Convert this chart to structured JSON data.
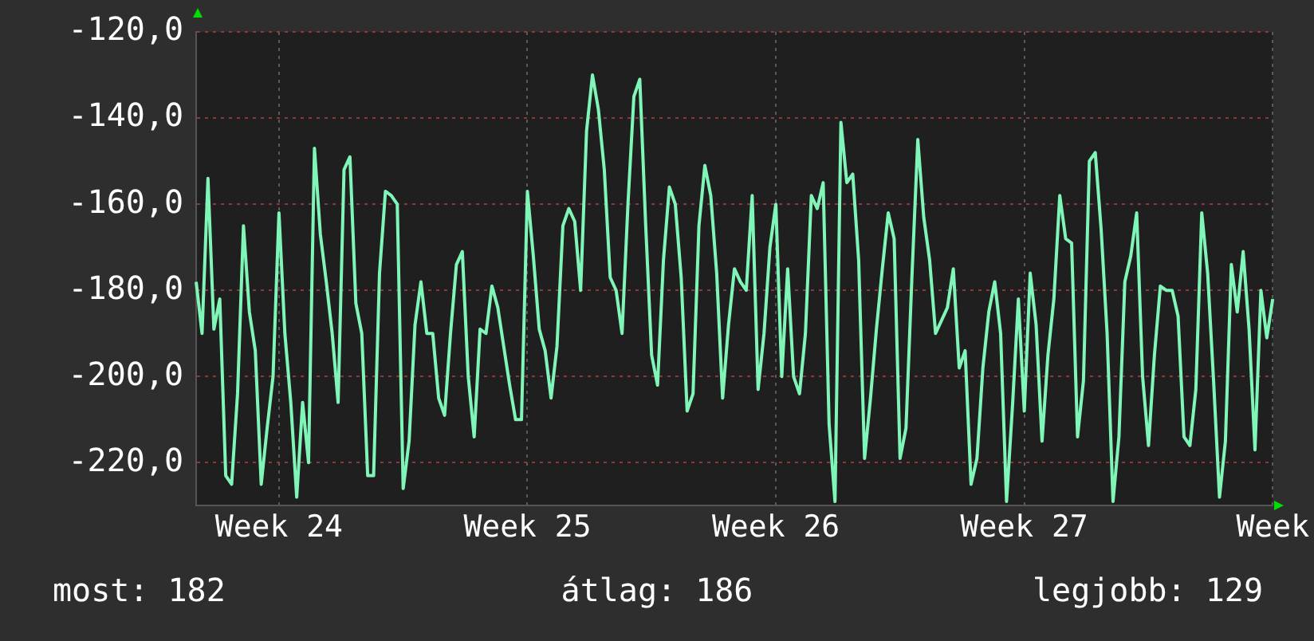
{
  "chart_data": {
    "type": "line",
    "color": "#80f5b8",
    "grid": true,
    "legend": false,
    "marker": "none",
    "categories": [
      null,
      null,
      null,
      null,
      null,
      null,
      null,
      null,
      null,
      null,
      null,
      null,
      null,
      null,
      "Week 24",
      null,
      null,
      null,
      null,
      null,
      null,
      null,
      null,
      null,
      null,
      null,
      null,
      null,
      null,
      null,
      null,
      null,
      null,
      null,
      null,
      null,
      null,
      null,
      null,
      null,
      null,
      null,
      null,
      null,
      null,
      null,
      null,
      null,
      null,
      null,
      null,
      null,
      null,
      null,
      null,
      null,
      "Week 25",
      null,
      null,
      null,
      null,
      null,
      null,
      null,
      null,
      null,
      null,
      null,
      null,
      null,
      null,
      null,
      null,
      null,
      null,
      null,
      null,
      null,
      null,
      null,
      null,
      null,
      null,
      null,
      null,
      null,
      null,
      null,
      null,
      null,
      null,
      null,
      null,
      null,
      null,
      null,
      null,
      null,
      "Week 26",
      null,
      null,
      null,
      null,
      null,
      null,
      null,
      null,
      null,
      null,
      null,
      null,
      null,
      null,
      null,
      null,
      null,
      null,
      null,
      null,
      null,
      null,
      null,
      null,
      null,
      null,
      null,
      null,
      null,
      null,
      null,
      null,
      null,
      null,
      null,
      null,
      null,
      null,
      null,
      null,
      null,
      "Week 27",
      null,
      null,
      null,
      null,
      null,
      null,
      null,
      null,
      null,
      null,
      null,
      null,
      null,
      null,
      null,
      null,
      null,
      null,
      null,
      null,
      null,
      null,
      null,
      null,
      null,
      null,
      null,
      null,
      null,
      null,
      null,
      null,
      null,
      null,
      null,
      null,
      null,
      null,
      null,
      null,
      null,
      "Week"
    ],
    "ylim": [
      -230,
      -120
    ],
    "yticks": [
      {
        "value": -120,
        "label": "-120,0"
      },
      {
        "value": -140,
        "label": "-140,0"
      },
      {
        "value": -160,
        "label": "-160,0"
      },
      {
        "value": -180,
        "label": "-180,0"
      },
      {
        "value": -200,
        "label": "-200,0"
      },
      {
        "value": -220,
        "label": "-220,0"
      }
    ],
    "annotations": [
      "most: 182",
      "átlag: 186",
      "legjobb: 129"
    ],
    "values": [
      -178,
      -190,
      -154,
      -189,
      -182,
      -223,
      -225,
      -204,
      -165,
      -185,
      -194,
      -225,
      -212,
      -200,
      -162,
      -190,
      -206,
      -228,
      -206,
      -220,
      -147,
      -167,
      -178,
      -190,
      -206,
      -152,
      -149,
      -183,
      -190,
      -223,
      -223,
      -176,
      -157,
      -158,
      -160,
      -226,
      -215,
      -188,
      -178,
      -190,
      -190,
      -205,
      -209,
      -190,
      -174,
      -171,
      -200,
      -214,
      -189,
      -190,
      -179,
      -184,
      -193,
      -202,
      -210,
      -210,
      -157,
      -172,
      -189,
      -194,
      -205,
      -193,
      -165,
      -161,
      -164,
      -180,
      -143,
      -130,
      -138,
      -152,
      -177,
      -180,
      -190,
      -160,
      -135,
      -131,
      -165,
      -195,
      -202,
      -173,
      -156,
      -160,
      -177,
      -208,
      -204,
      -165,
      -151,
      -158,
      -176,
      -205,
      -188,
      -175,
      -178,
      -180,
      -158,
      -203,
      -190,
      -170,
      -160,
      -200,
      -175,
      -200,
      -204,
      -190,
      -158,
      -161,
      -155,
      -211,
      -229,
      -141,
      -155,
      -153,
      -173,
      -219,
      -205,
      -189,
      -175,
      -162,
      -168,
      -219,
      -212,
      -177,
      -145,
      -163,
      -173,
      -190,
      -187,
      -184,
      -175,
      -198,
      -194,
      -225,
      -219,
      -198,
      -185,
      -178,
      -190,
      -229,
      -207,
      -182,
      -208,
      -176,
      -188,
      -215,
      -195,
      -182,
      -158,
      -168,
      -169,
      -214,
      -201,
      -150,
      -148,
      -166,
      -190,
      -229,
      -214,
      -178,
      -172,
      -162,
      -200,
      -216,
      -195,
      -179,
      -180,
      -180,
      -186,
      -214,
      -216,
      -203,
      -162,
      -176,
      -201,
      -228,
      -215,
      -174,
      -185,
      -171,
      -189,
      -217,
      -180,
      -191,
      -182
    ]
  }
}
